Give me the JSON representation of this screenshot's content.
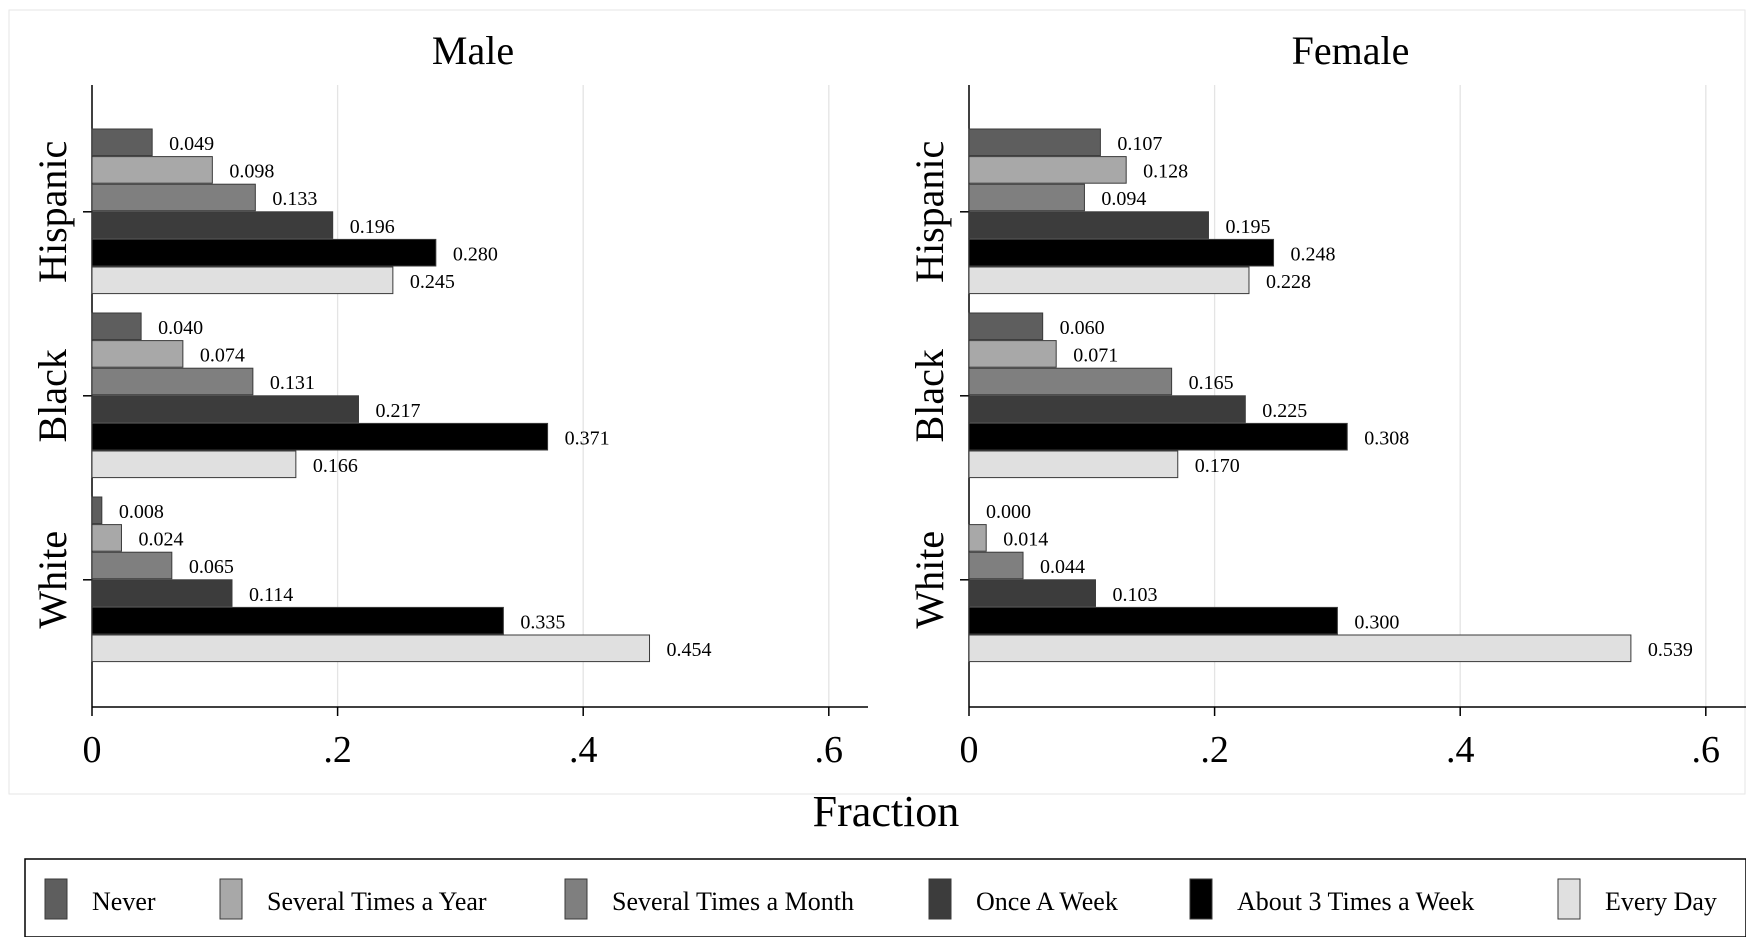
{
  "chart_data": {
    "type": "bar",
    "orientation": "horizontal",
    "xlabel": "Fraction",
    "xlim": [
      0,
      0.63
    ],
    "xticks": [
      {
        "value": 0,
        "label": "0"
      },
      {
        "value": 0.2,
        "label": ".2"
      },
      {
        "value": 0.4,
        "label": ".4"
      },
      {
        "value": 0.6,
        "label": ".6"
      }
    ],
    "grid": true,
    "legend_position": "bottom",
    "legend": [
      {
        "name": "Never",
        "color": "#5e5e5e"
      },
      {
        "name": "Several Times a Year",
        "color": "#a8a8a8"
      },
      {
        "name": "Several Times a Month",
        "color": "#7f7f7f"
      },
      {
        "name": "Once A Week",
        "color": "#3c3c3c"
      },
      {
        "name": "About 3 Times a Week",
        "color": "#000000"
      },
      {
        "name": "Every Day",
        "color": "#e0e0e0"
      }
    ],
    "panels": [
      {
        "title": "Male",
        "groups": [
          {
            "label": "Hispanic",
            "values": [
              0.049,
              0.098,
              0.133,
              0.196,
              0.28,
              0.245
            ],
            "labels": [
              "0.049",
              "0.098",
              "0.133",
              "0.196",
              "0.280",
              "0.245"
            ]
          },
          {
            "label": "Black",
            "values": [
              0.04,
              0.074,
              0.131,
              0.217,
              0.371,
              0.166
            ],
            "labels": [
              "0.040",
              "0.074",
              "0.131",
              "0.217",
              "0.371",
              "0.166"
            ]
          },
          {
            "label": "White",
            "values": [
              0.008,
              0.024,
              0.065,
              0.114,
              0.335,
              0.454
            ],
            "labels": [
              "0.008",
              "0.024",
              "0.065",
              "0.114",
              "0.335",
              "0.454"
            ]
          }
        ]
      },
      {
        "title": "Female",
        "groups": [
          {
            "label": "Hispanic",
            "values": [
              0.107,
              0.128,
              0.094,
              0.195,
              0.248,
              0.228
            ],
            "labels": [
              "0.107",
              "0.128",
              "0.094",
              "0.195",
              "0.248",
              "0.228"
            ]
          },
          {
            "label": "Black",
            "values": [
              0.06,
              0.071,
              0.165,
              0.225,
              0.308,
              0.17
            ],
            "labels": [
              "0.060",
              "0.071",
              "0.165",
              "0.225",
              "0.308",
              "0.170"
            ]
          },
          {
            "label": "White",
            "values": [
              0.0,
              0.014,
              0.044,
              0.103,
              0.3,
              0.539
            ],
            "labels": [
              "0.000",
              "0.014",
              "0.044",
              "0.103",
              "0.300",
              "0.539"
            ]
          }
        ]
      }
    ]
  }
}
